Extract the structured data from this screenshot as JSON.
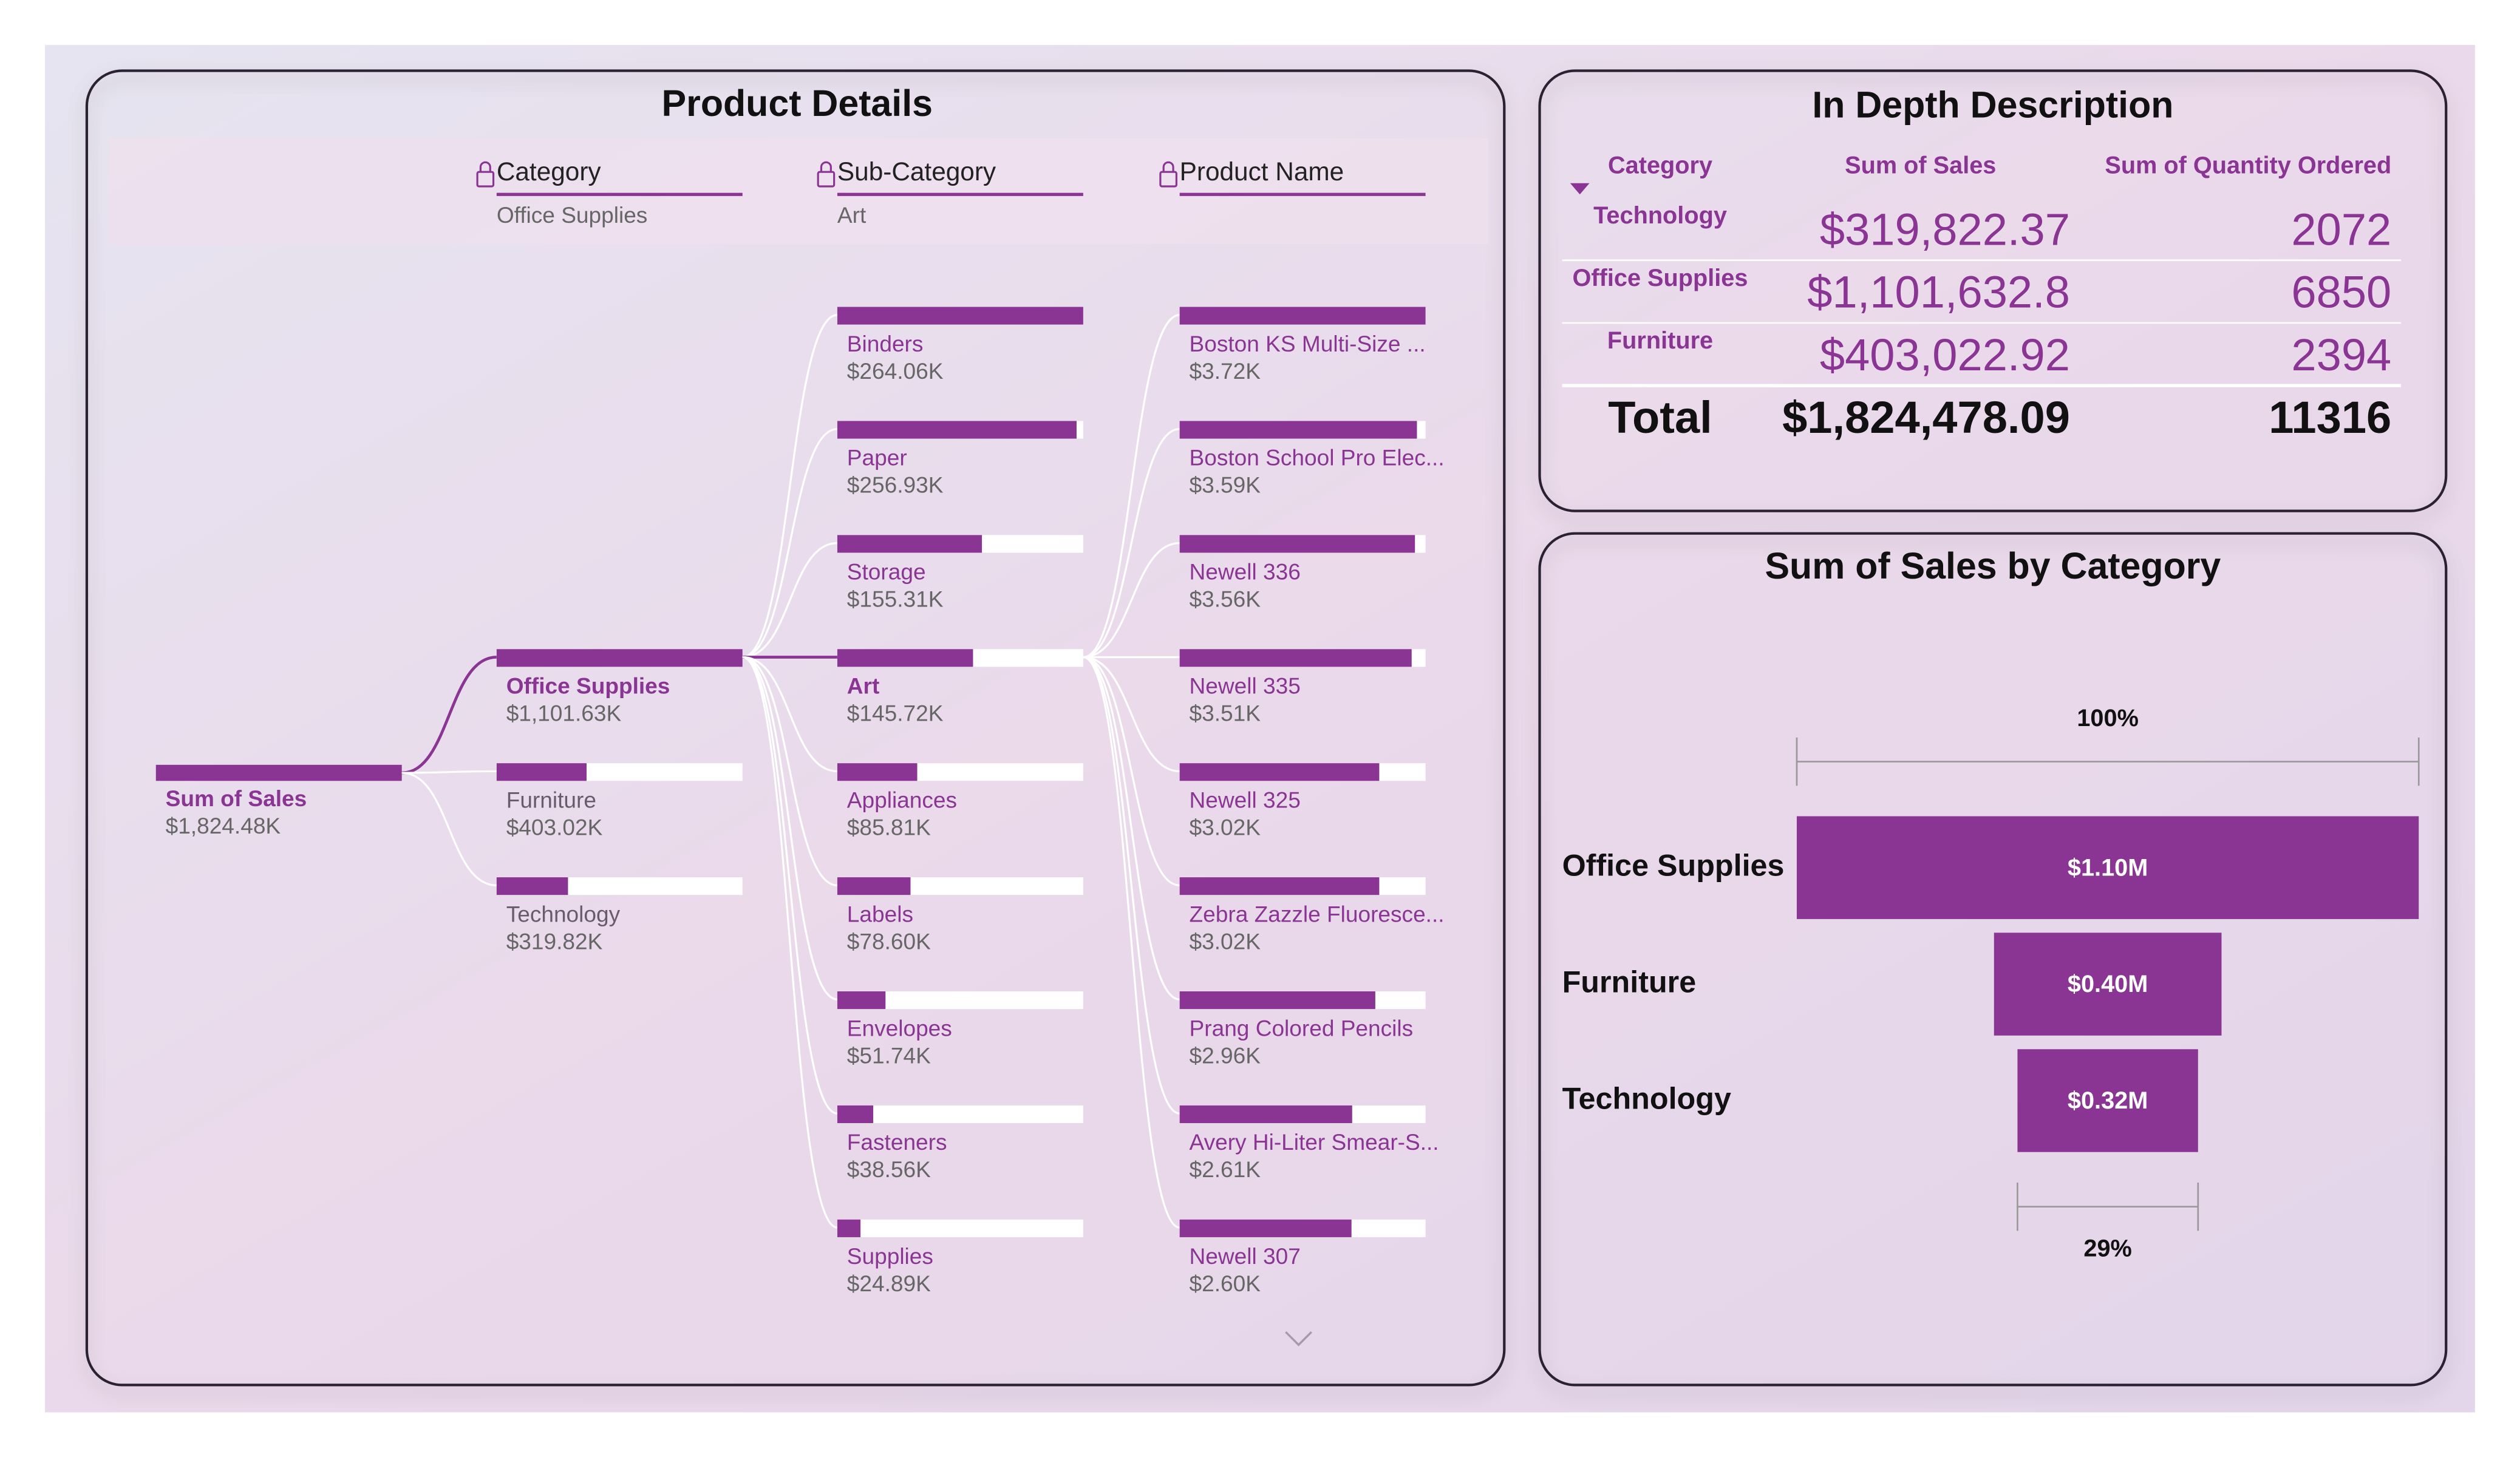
{
  "decomposition_tree": {
    "title": "Product Details",
    "color": "#8a3593",
    "levels": [
      {
        "header": "Category",
        "selected": "Office Supplies"
      },
      {
        "header": "Sub-Category",
        "selected": "Art"
      },
      {
        "header": "Product Name"
      }
    ],
    "root": {
      "name": "Sum of Sales",
      "value": 1824.48,
      "value_label": "$1,824.48K"
    },
    "columns": [
      [
        {
          "name": "Office Supplies",
          "value": 1101.63,
          "value_label": "$1,101.63K"
        },
        {
          "name": "Furniture",
          "value": 403.02,
          "value_label": "$403.02K"
        },
        {
          "name": "Technology",
          "value": 319.82,
          "value_label": "$319.82K"
        }
      ],
      [
        {
          "name": "Binders",
          "value": 264.06,
          "value_label": "$264.06K"
        },
        {
          "name": "Paper",
          "value": 256.93,
          "value_label": "$256.93K"
        },
        {
          "name": "Storage",
          "value": 155.31,
          "value_label": "$155.31K"
        },
        {
          "name": "Art",
          "value": 145.72,
          "value_label": "$145.72K"
        },
        {
          "name": "Appliances",
          "value": 85.81,
          "value_label": "$85.81K"
        },
        {
          "name": "Labels",
          "value": 78.6,
          "value_label": "$78.60K"
        },
        {
          "name": "Envelopes",
          "value": 51.74,
          "value_label": "$51.74K"
        },
        {
          "name": "Fasteners",
          "value": 38.56,
          "value_label": "$38.56K"
        },
        {
          "name": "Supplies",
          "value": 24.89,
          "value_label": "$24.89K"
        }
      ],
      [
        {
          "name": "Boston KS Multi-Size ...",
          "value": 3.72,
          "value_label": "$3.72K"
        },
        {
          "name": "Boston School Pro Elec...",
          "value": 3.59,
          "value_label": "$3.59K"
        },
        {
          "name": "Newell 336",
          "value": 3.56,
          "value_label": "$3.56K"
        },
        {
          "name": "Newell 335",
          "value": 3.51,
          "value_label": "$3.51K"
        },
        {
          "name": "Newell 325",
          "value": 3.02,
          "value_label": "$3.02K"
        },
        {
          "name": "Zebra Zazzle Fluoresce...",
          "value": 3.02,
          "value_label": "$3.02K"
        },
        {
          "name": "Prang Colored Pencils",
          "value": 2.96,
          "value_label": "$2.96K"
        },
        {
          "name": "Avery Hi-Liter Smear-S...",
          "value": 2.61,
          "value_label": "$2.61K"
        },
        {
          "name": "Newell 307",
          "value": 2.6,
          "value_label": "$2.60K"
        }
      ]
    ]
  },
  "table": {
    "title": "In Depth Description",
    "columns": [
      "Category",
      "Sum of Sales",
      "Sum of Quantity Ordered"
    ],
    "rows": [
      [
        "Technology",
        "$319,822.37",
        "2072"
      ],
      [
        "Office Supplies",
        "$1,101,632.8",
        "6850"
      ],
      [
        "Furniture",
        "$403,022.92",
        "2394"
      ]
    ],
    "total": [
      "Total",
      "$1,824,478.09",
      "11316"
    ]
  },
  "chart_data": {
    "type": "funnel",
    "title": "Sum of Sales by Category",
    "categories": [
      "Office Supplies",
      "Furniture",
      "Technology"
    ],
    "values": [
      1101632.8,
      403022.92,
      319822.37
    ],
    "value_labels": [
      "$1.10M",
      "$0.40M",
      "$0.32M"
    ],
    "color": "#8a3593",
    "top_label": "100%",
    "bottom_label": "29%"
  }
}
